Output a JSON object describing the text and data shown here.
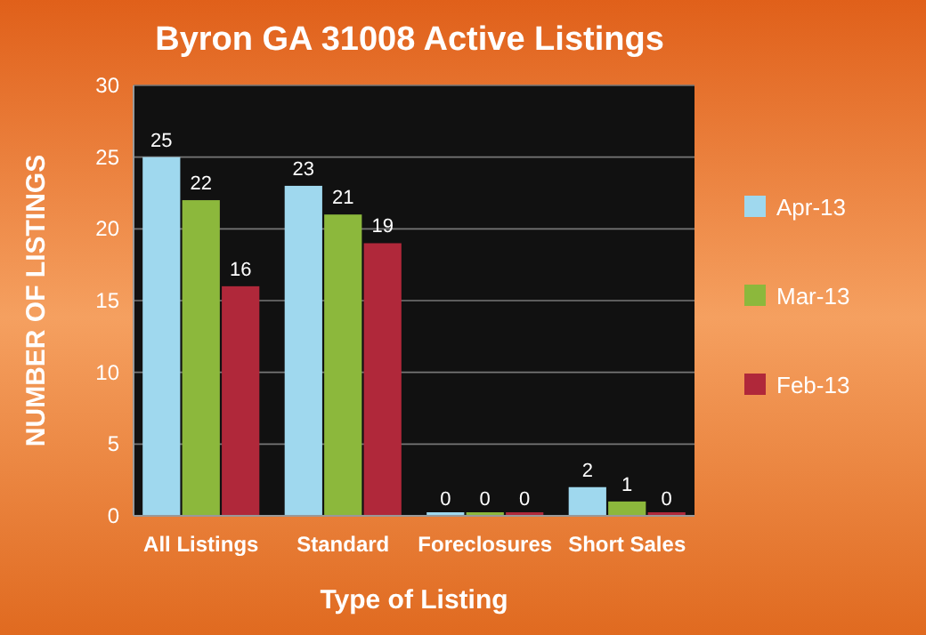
{
  "chart_data": {
    "type": "bar",
    "title": "Byron GA 31008 Active Listings",
    "xlabel": "Type of Listing",
    "ylabel": "NUMBER OF LISTINGS",
    "categories": [
      "All Listings",
      "Standard",
      "Foreclosures",
      "Short Sales"
    ],
    "series": [
      {
        "name": "Apr-13",
        "color": "#9fd8ee",
        "values": [
          25,
          23,
          0,
          2
        ]
      },
      {
        "name": "Mar-13",
        "color": "#8cb83c",
        "values": [
          22,
          21,
          0,
          1
        ]
      },
      {
        "name": "Feb-13",
        "color": "#b0283a",
        "values": [
          16,
          19,
          0,
          0
        ]
      }
    ],
    "ylim": [
      0,
      30
    ],
    "yticks": [
      0,
      5,
      10,
      15,
      20,
      25,
      30
    ],
    "grid": "y",
    "legend": "right",
    "data_labels": true
  }
}
